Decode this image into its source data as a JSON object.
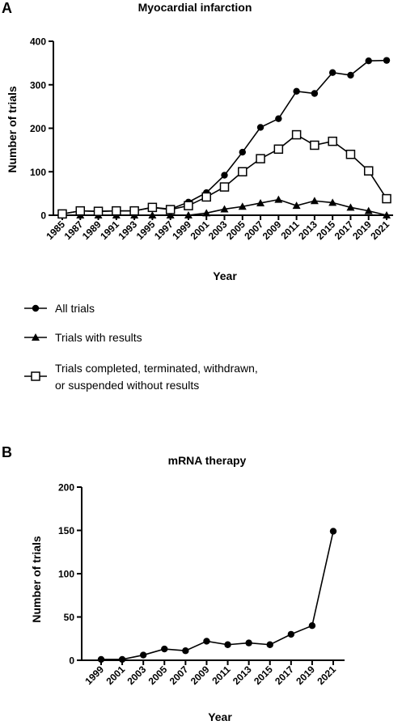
{
  "panels": {
    "a_letter": "A",
    "b_letter": "B"
  },
  "legend": {
    "all_trials": "All trials",
    "with_results": "Trials with results",
    "without_results_line1": "Trials completed, terminated, withdrawn,",
    "without_results_line2": "or suspended without results"
  },
  "chart_data": [
    {
      "type": "line",
      "title": "Myocardial infarction",
      "xlabel": "Year",
      "ylabel": "Number of trials",
      "ylim": [
        0,
        400
      ],
      "yticks": [
        0,
        100,
        200,
        300,
        400
      ],
      "xtick_labels": [
        "1985",
        "1987",
        "1989",
        "1991",
        "1993",
        "1995",
        "1997",
        "1999",
        "2001",
        "2003",
        "2005",
        "2007",
        "2009",
        "2011",
        "2013",
        "2015",
        "2017",
        "2019",
        "2021"
      ],
      "x": [
        1985,
        1987,
        1989,
        1991,
        1993,
        1995,
        1997,
        1999,
        2001,
        2003,
        2005,
        2007,
        2009,
        2011,
        2013,
        2015,
        2017,
        2019,
        2021
      ],
      "series": [
        {
          "name": "All trials",
          "marker": "filled-circle",
          "values": [
            3,
            10,
            9,
            10,
            10,
            18,
            14,
            30,
            52,
            92,
            145,
            202,
            222,
            285,
            280,
            328,
            322,
            355,
            356
          ]
        },
        {
          "name": "Trials with results",
          "marker": "filled-triangle",
          "values": [
            0,
            0,
            0,
            0,
            0,
            0,
            0,
            0,
            5,
            14,
            20,
            28,
            36,
            22,
            33,
            29,
            18,
            10,
            0
          ]
        },
        {
          "name": "Trials completed, terminated, withdrawn, or suspended without results",
          "marker": "open-square",
          "values": [
            3,
            10,
            9,
            10,
            10,
            18,
            13,
            22,
            42,
            65,
            100,
            130,
            152,
            185,
            161,
            170,
            140,
            102,
            38
          ]
        }
      ],
      "grid": false
    },
    {
      "type": "line",
      "title": "mRNA therapy",
      "xlabel": "Year",
      "ylabel": "Number of trials",
      "ylim": [
        0,
        200
      ],
      "yticks": [
        0,
        50,
        100,
        150,
        200
      ],
      "xtick_labels": [
        "1999",
        "2001",
        "2003",
        "2005",
        "2007",
        "2009",
        "2011",
        "2013",
        "2015",
        "2017",
        "2019",
        "2021"
      ],
      "x": [
        1999,
        2001,
        2003,
        2005,
        2007,
        2009,
        2011,
        2013,
        2015,
        2017,
        2019,
        2021
      ],
      "series": [
        {
          "marker": "filled-circle",
          "values": [
            1,
            1,
            6,
            13,
            11,
            22,
            18,
            20,
            18,
            30,
            40,
            149
          ]
        }
      ],
      "grid": false
    }
  ]
}
